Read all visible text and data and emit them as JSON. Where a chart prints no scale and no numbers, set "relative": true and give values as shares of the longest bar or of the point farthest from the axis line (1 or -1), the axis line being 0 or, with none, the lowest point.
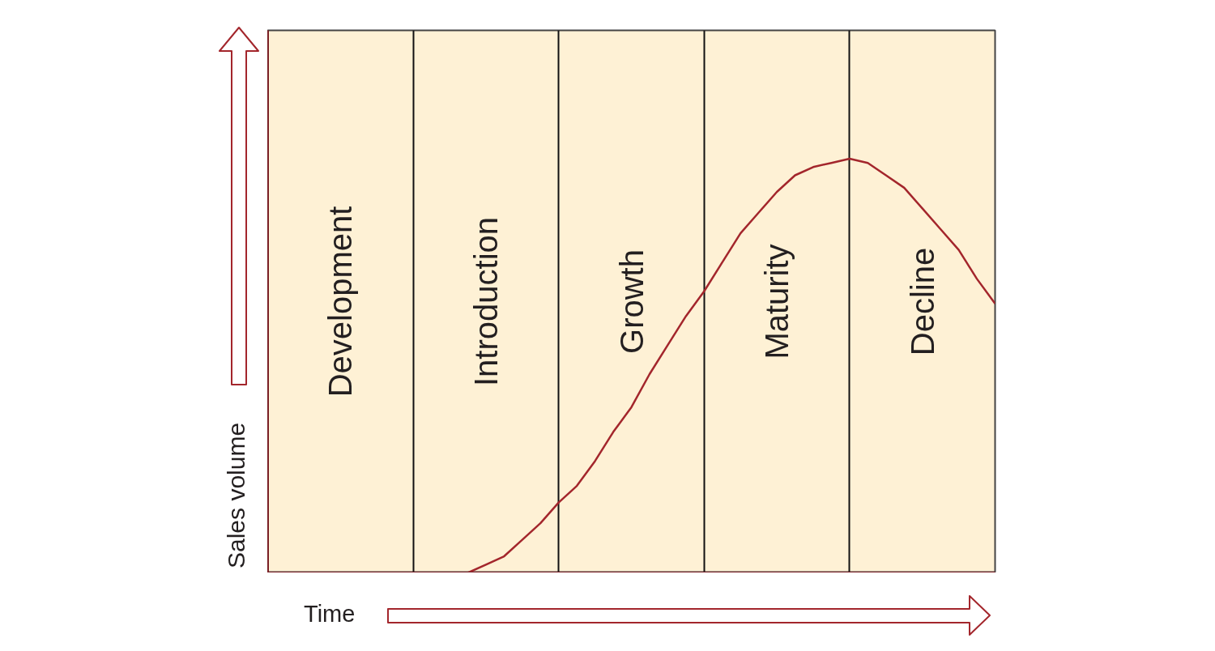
{
  "chart_data": {
    "type": "line",
    "relative": true,
    "xlabel": "Time",
    "ylabel": "Sales volume",
    "grid": "x",
    "categories": [
      null,
      null,
      null,
      null,
      null,
      null,
      null,
      null,
      null,
      null,
      null,
      null,
      null,
      null,
      null,
      null,
      null,
      null,
      null,
      null,
      null,
      null,
      null,
      null,
      null,
      null,
      null,
      null,
      null,
      null,
      null,
      null,
      null,
      null,
      null,
      null,
      null,
      null,
      null,
      null,
      null
    ],
    "annotations": [
      "Development",
      "Introduction",
      "Growth",
      "Maturity",
      "Decline"
    ],
    "series": [
      {
        "color": "#a3262c",
        "values": [
          null,
          null,
          null,
          null,
          null,
          null,
          null,
          null,
          null,
          null,
          null,
          0,
          0.02,
          0.04,
          0.08,
          0.12,
          0.17,
          0.21,
          0.27,
          0.34,
          0.4,
          0.48,
          0.55,
          0.62,
          0.68,
          0.75,
          0.82,
          0.87,
          0.92,
          0.96,
          0.98,
          0.99,
          1,
          0.99,
          0.96,
          0.93,
          0.88,
          0.83,
          0.78,
          0.71,
          0.65
        ]
      }
    ]
  }
}
